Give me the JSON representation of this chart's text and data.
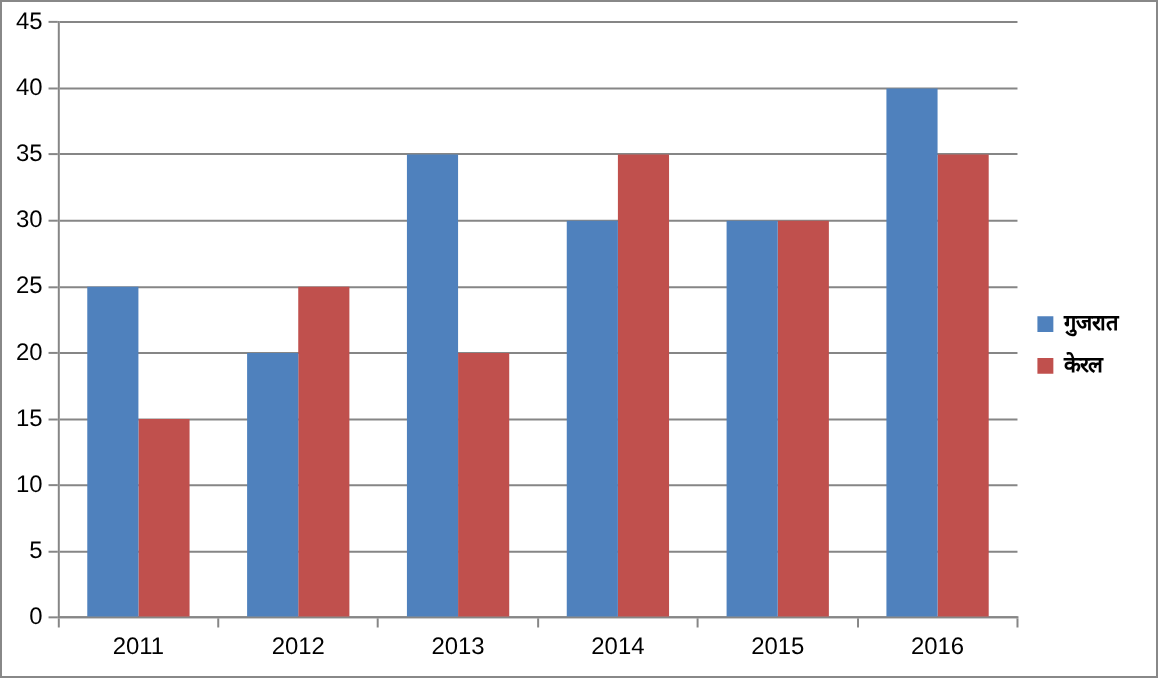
{
  "chart_data": {
    "type": "bar",
    "categories": [
      "2011",
      "2012",
      "2013",
      "2014",
      "2015",
      "2016"
    ],
    "series": [
      {
        "name": "गुजरात",
        "color": "#4f81bd",
        "values": [
          25,
          20,
          35,
          30,
          30,
          40
        ]
      },
      {
        "name": "केरल",
        "color": "#c0504d",
        "values": [
          15,
          25,
          20,
          35,
          30,
          35
        ]
      }
    ],
    "ylim": [
      0,
      45
    ],
    "yticks": [
      0,
      5,
      10,
      15,
      20,
      25,
      30,
      35,
      40,
      45
    ],
    "grid": "y",
    "legend": "right"
  }
}
